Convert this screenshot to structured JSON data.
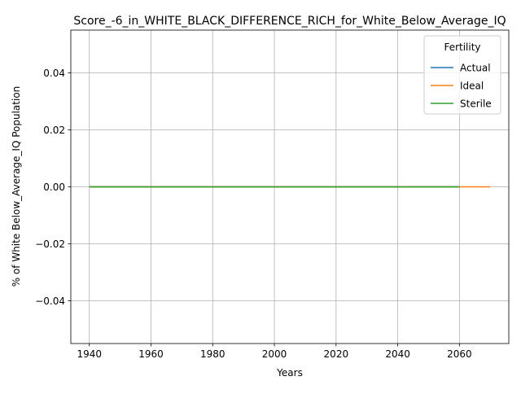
{
  "chart_data": {
    "type": "line",
    "title": "Score_-6_in_WHITE_BLACK_DIFFERENCE_RICH_for_White_Below_Average_IQ",
    "xlabel": "Years",
    "ylabel": "% of White Below_Average_IQ Population",
    "xlim": [
      1934,
      2076
    ],
    "ylim": [
      -0.055,
      0.055
    ],
    "xticks": [
      1940,
      1960,
      1980,
      2000,
      2020,
      2040,
      2060
    ],
    "xtick_labels": [
      "1940",
      "1960",
      "1980",
      "2000",
      "2020",
      "2040",
      "2060"
    ],
    "yticks": [
      -0.04,
      -0.02,
      0.0,
      0.02,
      0.04
    ],
    "ytick_labels": [
      "−0.04",
      "−0.02",
      "0.00",
      "0.02",
      "0.04"
    ],
    "grid": true,
    "legend": {
      "title": "Fertility",
      "placement": "top-right"
    },
    "series": [
      {
        "name": "Actual",
        "color": "#1f77b4",
        "x": [
          1940,
          1960,
          1980,
          2000,
          2020,
          2040,
          2060
        ],
        "y": [
          0,
          0,
          0,
          0,
          0,
          0,
          0
        ]
      },
      {
        "name": "Ideal",
        "color": "#ff7f0e",
        "x": [
          1940,
          1960,
          1980,
          2000,
          2020,
          2040,
          2060,
          2070
        ],
        "y": [
          0,
          0,
          0,
          0,
          0,
          0,
          0,
          0
        ]
      },
      {
        "name": "Sterile",
        "color": "#2ca02c",
        "x": [
          1940,
          1960,
          1980,
          2000,
          2020,
          2040,
          2060
        ],
        "y": [
          0,
          0,
          0,
          0,
          0,
          0,
          0
        ]
      }
    ]
  }
}
